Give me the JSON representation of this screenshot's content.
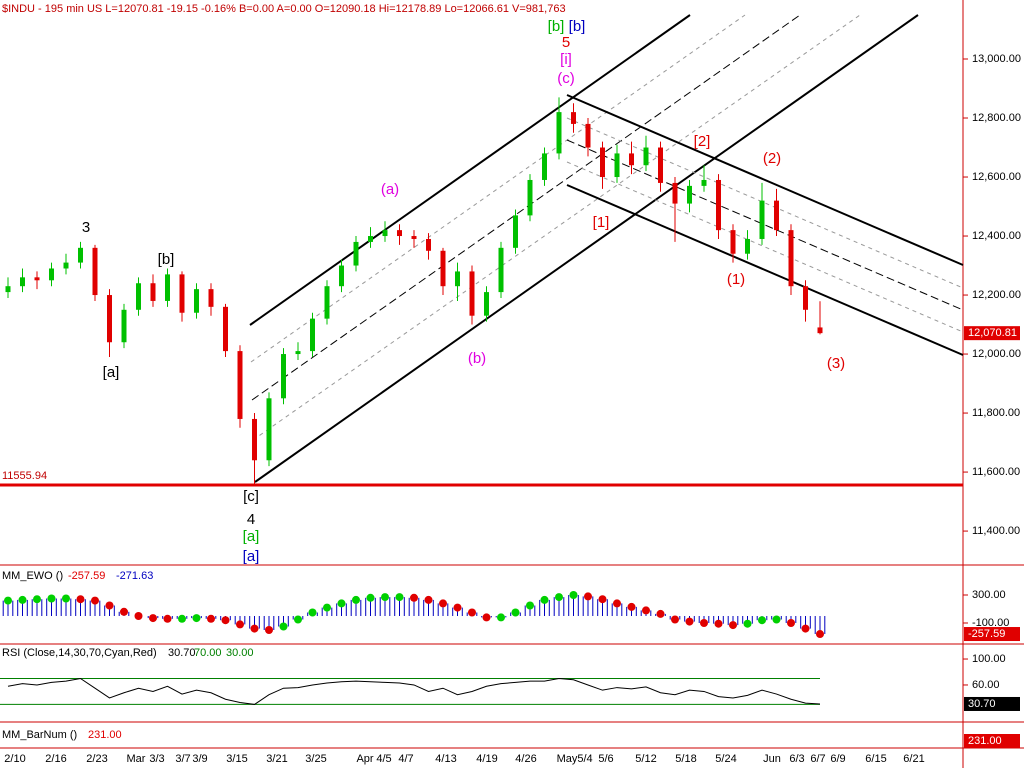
{
  "chart_data": [
    {
      "type": "candlestick",
      "header": "$INDU - 195 min  US  L=12070.81  -19.15  -0.16%  B=0.00  A=0.00  O=12090.18  Hi=12178.89  Lo=12066.61  V=981,763",
      "up_color": "#00c000",
      "down_color": "#e00000",
      "x_labels": [
        "2/10",
        "2/16",
        "2/23",
        "Mar",
        "3/3",
        "3/7",
        "3/9",
        "3/15",
        "3/21",
        "3/25",
        "Apr",
        "4/5",
        "4/7",
        "4/13",
        "4/19",
        "4/26",
        "May",
        "5/4",
        "5/6",
        "5/12",
        "5/18",
        "5/24",
        "Jun",
        "6/3",
        "6/7",
        "6/9",
        "6/15",
        "6/21"
      ],
      "open": [
        12210,
        12230,
        12260,
        12250,
        12290,
        12310,
        12360,
        12200,
        12040,
        12150,
        12240,
        12180,
        12270,
        12140,
        12220,
        12160,
        12010,
        11780,
        11640,
        11850,
        12000,
        12010,
        12120,
        12230,
        12300,
        12380,
        12400,
        12420,
        12400,
        12390,
        12350,
        12230,
        12280,
        12130,
        12210,
        12360,
        12470,
        12590,
        12680,
        12820,
        12780,
        12700,
        12600,
        12680,
        12640,
        12700,
        12580,
        12510,
        12570,
        12590,
        12420,
        12340,
        12390,
        12520,
        12420,
        12230,
        12090.18
      ],
      "high": [
        12260,
        12290,
        12280,
        12310,
        12340,
        12380,
        12370,
        12220,
        12170,
        12260,
        12270,
        12290,
        12280,
        12240,
        12240,
        12170,
        12030,
        11800,
        11870,
        12020,
        12040,
        12140,
        12250,
        12320,
        12400,
        12430,
        12450,
        12440,
        12420,
        12410,
        12360,
        12310,
        12300,
        12230,
        12380,
        12490,
        12610,
        12700,
        12870,
        12850,
        12800,
        12720,
        12710,
        12720,
        12740,
        12720,
        12600,
        12590,
        12640,
        12610,
        12440,
        12420,
        12580,
        12560,
        12440,
        12250,
        12178.89
      ],
      "low": [
        12190,
        12210,
        12220,
        12230,
        12270,
        12290,
        12180,
        11990,
        12020,
        12130,
        12160,
        12160,
        12110,
        12120,
        12130,
        11990,
        11750,
        11556,
        11620,
        11830,
        11980,
        11990,
        12100,
        12210,
        12280,
        12360,
        12380,
        12370,
        12360,
        12320,
        12200,
        12180,
        12100,
        12110,
        12190,
        12340,
        12450,
        12570,
        12660,
        12750,
        12670,
        12560,
        12580,
        12610,
        12620,
        12550,
        12380,
        12480,
        12550,
        12390,
        12310,
        12320,
        12370,
        12400,
        12200,
        12110,
        12066.61
      ],
      "close": [
        12230,
        12260,
        12250,
        12290,
        12310,
        12360,
        12200,
        12040,
        12150,
        12240,
        12180,
        12270,
        12140,
        12220,
        12160,
        12010,
        11780,
        11640,
        11850,
        12000,
        12010,
        12120,
        12230,
        12300,
        12380,
        12400,
        12420,
        12400,
        12390,
        12350,
        12230,
        12280,
        12130,
        12210,
        12360,
        12470,
        12590,
        12680,
        12820,
        12780,
        12700,
        12600,
        12680,
        12640,
        12700,
        12580,
        12510,
        12570,
        12590,
        12420,
        12340,
        12390,
        12520,
        12420,
        12230,
        12150,
        12070.81
      ],
      "last_price_label": "12,070.81",
      "ylim": [
        11285,
        13200
      ],
      "yticks": [
        {
          "value": 11400,
          "label": "11,400.00"
        },
        {
          "value": 11600,
          "label": "11,600.00"
        },
        {
          "value": 11800,
          "label": "11,800.00"
        },
        {
          "value": 12000,
          "label": "12,000.00"
        },
        {
          "value": 12200,
          "label": "12,200.00"
        },
        {
          "value": 12400,
          "label": "12,400.00"
        },
        {
          "value": 12600,
          "label": "12,600.00"
        },
        {
          "value": 12800,
          "label": "12,800.00"
        },
        {
          "value": 13000,
          "label": "13,000.00"
        }
      ],
      "support": 11555.94,
      "annotations": [
        {
          "text": "3",
          "color": "#000"
        },
        {
          "text": "[b]",
          "color": "#000"
        },
        {
          "text": "[a]",
          "color": "#000"
        },
        {
          "text": "[c]",
          "color": "#000"
        },
        {
          "text": "4",
          "color": "#000"
        },
        {
          "text": "[a]",
          "color": "#00b000"
        },
        {
          "text": "[a]",
          "color": "#0000c0"
        },
        {
          "text": "[b]",
          "color": "#00b000"
        },
        {
          "text": "[b]",
          "color": "#0000c0"
        },
        {
          "text": "5",
          "color": "#e00000"
        },
        {
          "text": "[i]",
          "color": "#e000e0"
        },
        {
          "text": "(c)",
          "color": "#e000e0"
        },
        {
          "text": "(a)",
          "color": "#e000e0"
        },
        {
          "text": "(b)",
          "color": "#e000e0"
        },
        {
          "text": "[1]",
          "color": "#e00000"
        },
        {
          "text": "[2]",
          "color": "#e00000"
        },
        {
          "text": "(2)",
          "color": "#e00000"
        },
        {
          "text": "(1)",
          "color": "#e00000"
        },
        {
          "text": "(3)",
          "color": "#e00000"
        }
      ]
    },
    {
      "type": "ewo",
      "title": "MM_EWO ()",
      "readout": [
        "-257.59",
        "-271.63"
      ],
      "last_label": "-257.59",
      "values": [
        220,
        230,
        240,
        250,
        250,
        240,
        220,
        150,
        60,
        0,
        -30,
        -40,
        -40,
        -30,
        -40,
        -60,
        -120,
        -180,
        -200,
        -150,
        -50,
        50,
        120,
        180,
        230,
        260,
        270,
        270,
        260,
        230,
        180,
        120,
        50,
        -20,
        -20,
        50,
        150,
        230,
        270,
        300,
        280,
        240,
        180,
        130,
        80,
        30,
        -50,
        -80,
        -100,
        -110,
        -130,
        -110,
        -60,
        -50,
        -100,
        -180,
        -257.59
      ],
      "ylim": [
        -343,
        686
      ],
      "yticks": [
        {
          "value": 300,
          "label": "300.00"
        },
        {
          "value": -100,
          "label": "-100.00"
        }
      ]
    },
    {
      "type": "rsi",
      "title": "RSI (Close,14,30,70,Cyan,Red)",
      "readout": [
        "30.70",
        "70.00",
        "30.00"
      ],
      "last_label": "30.70",
      "levels": [
        70,
        30
      ],
      "values": [
        58,
        62,
        60,
        64,
        66,
        70,
        55,
        40,
        48,
        55,
        50,
        58,
        46,
        52,
        48,
        38,
        33,
        30,
        45,
        55,
        56,
        60,
        63,
        65,
        66,
        65,
        64,
        63,
        60,
        50,
        55,
        45,
        50,
        58,
        62,
        64,
        66,
        66,
        70,
        68,
        60,
        52,
        56,
        54,
        57,
        48,
        45,
        52,
        50,
        42,
        40,
        44,
        52,
        46,
        38,
        32,
        30.7
      ],
      "ylim": [
        6,
        117
      ],
      "yticks": [
        {
          "value": 100,
          "label": "100.00"
        },
        {
          "value": 60,
          "label": "60.00"
        }
      ]
    },
    {
      "type": "barnum",
      "title": "MM_BarNum ()",
      "readout": "231.00",
      "last_label": "231.00"
    }
  ]
}
